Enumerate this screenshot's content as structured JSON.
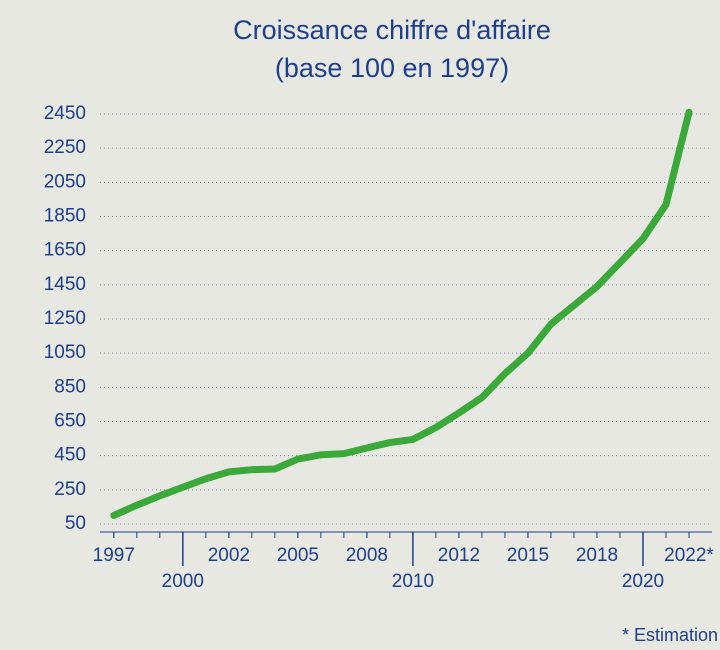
{
  "chart_data": {
    "type": "line",
    "title": "Croissance chiffre d'affaire",
    "subtitle": "(base 100 en 1997)",
    "footnote": "* Estimation",
    "x": [
      1997,
      1998,
      1999,
      2000,
      2001,
      2002,
      2003,
      2004,
      2005,
      2006,
      2007,
      2008,
      2009,
      2010,
      2011,
      2012,
      2013,
      2014,
      2015,
      2016,
      2017,
      2018,
      2019,
      2020,
      2021,
      2022
    ],
    "values": [
      100,
      160,
      215,
      265,
      315,
      355,
      368,
      372,
      430,
      455,
      462,
      495,
      527,
      545,
      615,
      700,
      790,
      930,
      1050,
      1220,
      1330,
      1440,
      1580,
      1720,
      1920,
      2460
    ],
    "color": "#3aa93a",
    "xlim": [
      1996.4,
      2023
    ],
    "xticks": [
      1997,
      2002,
      2005,
      2008,
      2012,
      2015,
      2018,
      {
        "value": 2022,
        "label": "2022*"
      }
    ],
    "xticks_major": [
      2000,
      2010,
      2020
    ],
    "ylim": [
      50,
      2450
    ],
    "yticks": [
      50,
      250,
      450,
      650,
      850,
      1050,
      1250,
      1450,
      1650,
      1850,
      2050,
      2250,
      2450
    ],
    "grid": true
  }
}
